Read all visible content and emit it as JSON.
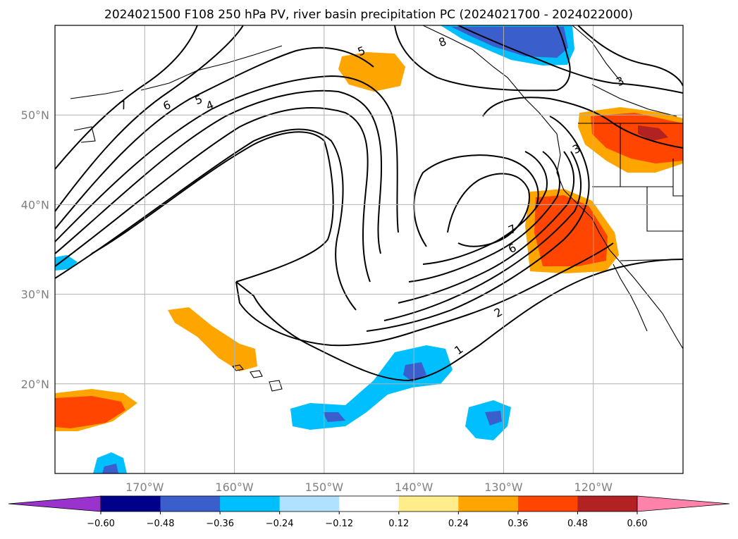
{
  "chart_data": {
    "type": "contour-map",
    "title": "2024021500 F108 250 hPa PV, river basin precipitation PC (2024021700 - 2024022000)",
    "map": {
      "lon_range": [
        -180,
        -110
      ],
      "lat_range": [
        10,
        60
      ],
      "lon_ticks": [
        -170,
        -160,
        -150,
        -140,
        -130,
        -120
      ],
      "lon_tick_labels": [
        "170°W",
        "160°W",
        "150°W",
        "140°W",
        "130°W",
        "120°W"
      ],
      "lat_ticks": [
        20,
        30,
        40,
        50
      ],
      "lat_tick_labels": [
        "20°N",
        "30°N",
        "40°N",
        "50°N"
      ],
      "grid": true
    },
    "pv_contour_labels": [
      "1",
      "2",
      "3",
      "3",
      "4",
      "5",
      "5",
      "6",
      "6",
      "7",
      "7",
      "8"
    ],
    "colorbar": {
      "tick_labels": [
        "−0.60",
        "−0.48",
        "−0.36",
        "−0.24",
        "−0.12",
        "0.12",
        "0.24",
        "0.36",
        "0.48",
        "0.60"
      ],
      "ticks": [
        -0.6,
        -0.48,
        -0.36,
        -0.24,
        -0.12,
        0.12,
        0.24,
        0.36,
        0.48,
        0.6
      ],
      "colors": [
        "#9a32cd",
        "#00008b",
        "#3a5fcd",
        "#00bfff",
        "#b0e2ff",
        "#ffffff",
        "#ffec8b",
        "#ffa500",
        "#ff4500",
        "#b22222",
        "#ff82ab"
      ],
      "extend": "both"
    }
  }
}
